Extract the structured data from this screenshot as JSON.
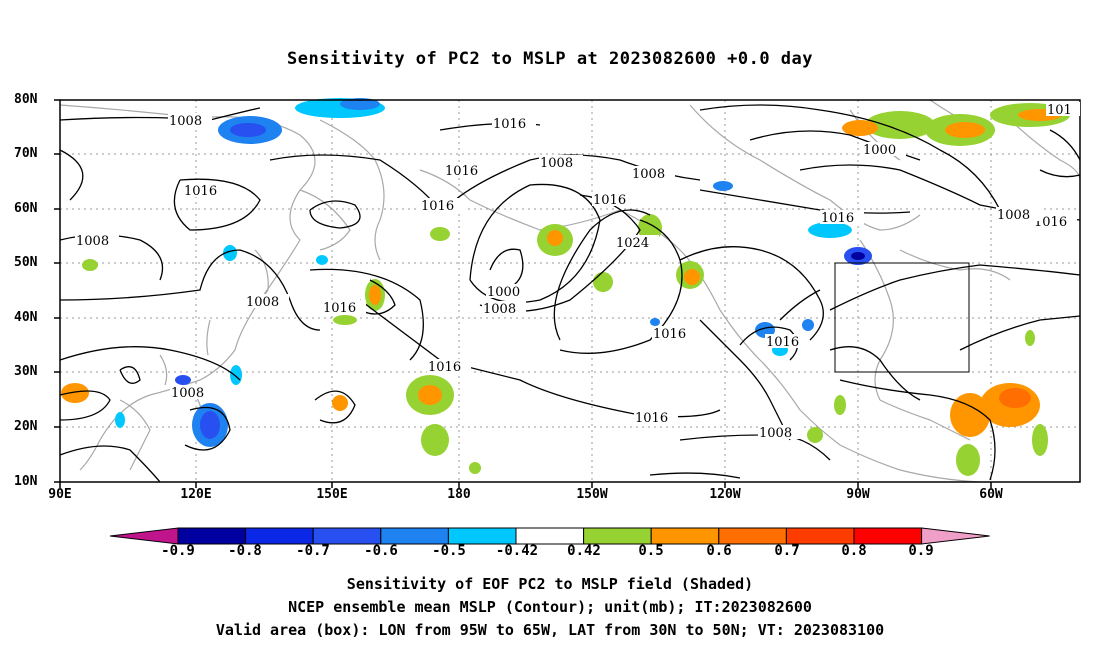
{
  "title": "Sensitivity of PC2 to MSLP at 2023082600 +0.0 day",
  "lat_labels": [
    "80N",
    "70N",
    "60N",
    "50N",
    "40N",
    "30N",
    "20N",
    "10N"
  ],
  "lon_labels": [
    "90E",
    "120E",
    "150E",
    "180",
    "150W",
    "120W",
    "90W",
    "60W"
  ],
  "contour_labels": [
    "1008",
    "1016",
    "1008",
    "1016",
    "1016",
    "1008",
    "1008",
    "1016",
    "1024",
    "1016",
    "1016",
    "1016",
    "1000",
    "1008",
    "1016",
    "1016",
    "1016",
    "1008",
    "1016",
    "1008",
    "1008",
    "1000",
    "1016",
    "1008",
    "101"
  ],
  "colorbar": {
    "labels": [
      "-0.9",
      "-0.8",
      "-0.7",
      "-0.6",
      "-0.5",
      "-0.42",
      "0.42",
      "0.5",
      "0.6",
      "0.7",
      "0.8",
      "0.9"
    ],
    "colors": [
      "#c0148c",
      "#0000a0",
      "#0a28e6",
      "#2850f0",
      "#1e82f0",
      "#00c8ff",
      "#ffffff",
      "#96d232",
      "#ff9600",
      "#ff6e00",
      "#ff3c00",
      "#ff0000",
      "#f0a0c8"
    ]
  },
  "footer": [
    "Sensitivity of EOF PC2 to MSLP field (Shaded)",
    "NCEP ensemble mean MSLP (Contour); unit(mb); IT:2023082600",
    "Valid area (box): LON from 95W to 65W, LAT from 30N to 50N; VT: 2023083100"
  ]
}
